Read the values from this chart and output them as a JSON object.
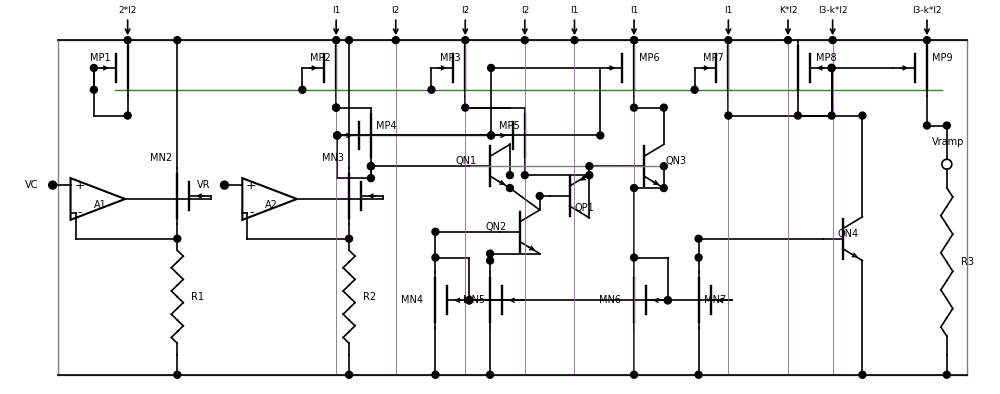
{
  "bg_color": "#ffffff",
  "line_color": "#000000",
  "green_color": "#3a7a3a",
  "purple_color": "#9060a0",
  "gray_color": "#808080",
  "fig_width": 10.0,
  "fig_height": 3.94,
  "dpi": 100,
  "curr_labels": [
    [
      12.5,
      "2*I2"
    ],
    [
      33.5,
      "I1"
    ],
    [
      39.5,
      "I2"
    ],
    [
      46.5,
      "I2"
    ],
    [
      52.5,
      "I2"
    ],
    [
      57.5,
      "I1"
    ],
    [
      63.5,
      "I1"
    ],
    [
      73.0,
      "I1"
    ],
    [
      79.0,
      "K*I2"
    ],
    [
      83.5,
      "I3-k*I2"
    ],
    [
      93.0,
      "I3-k*I2"
    ]
  ]
}
